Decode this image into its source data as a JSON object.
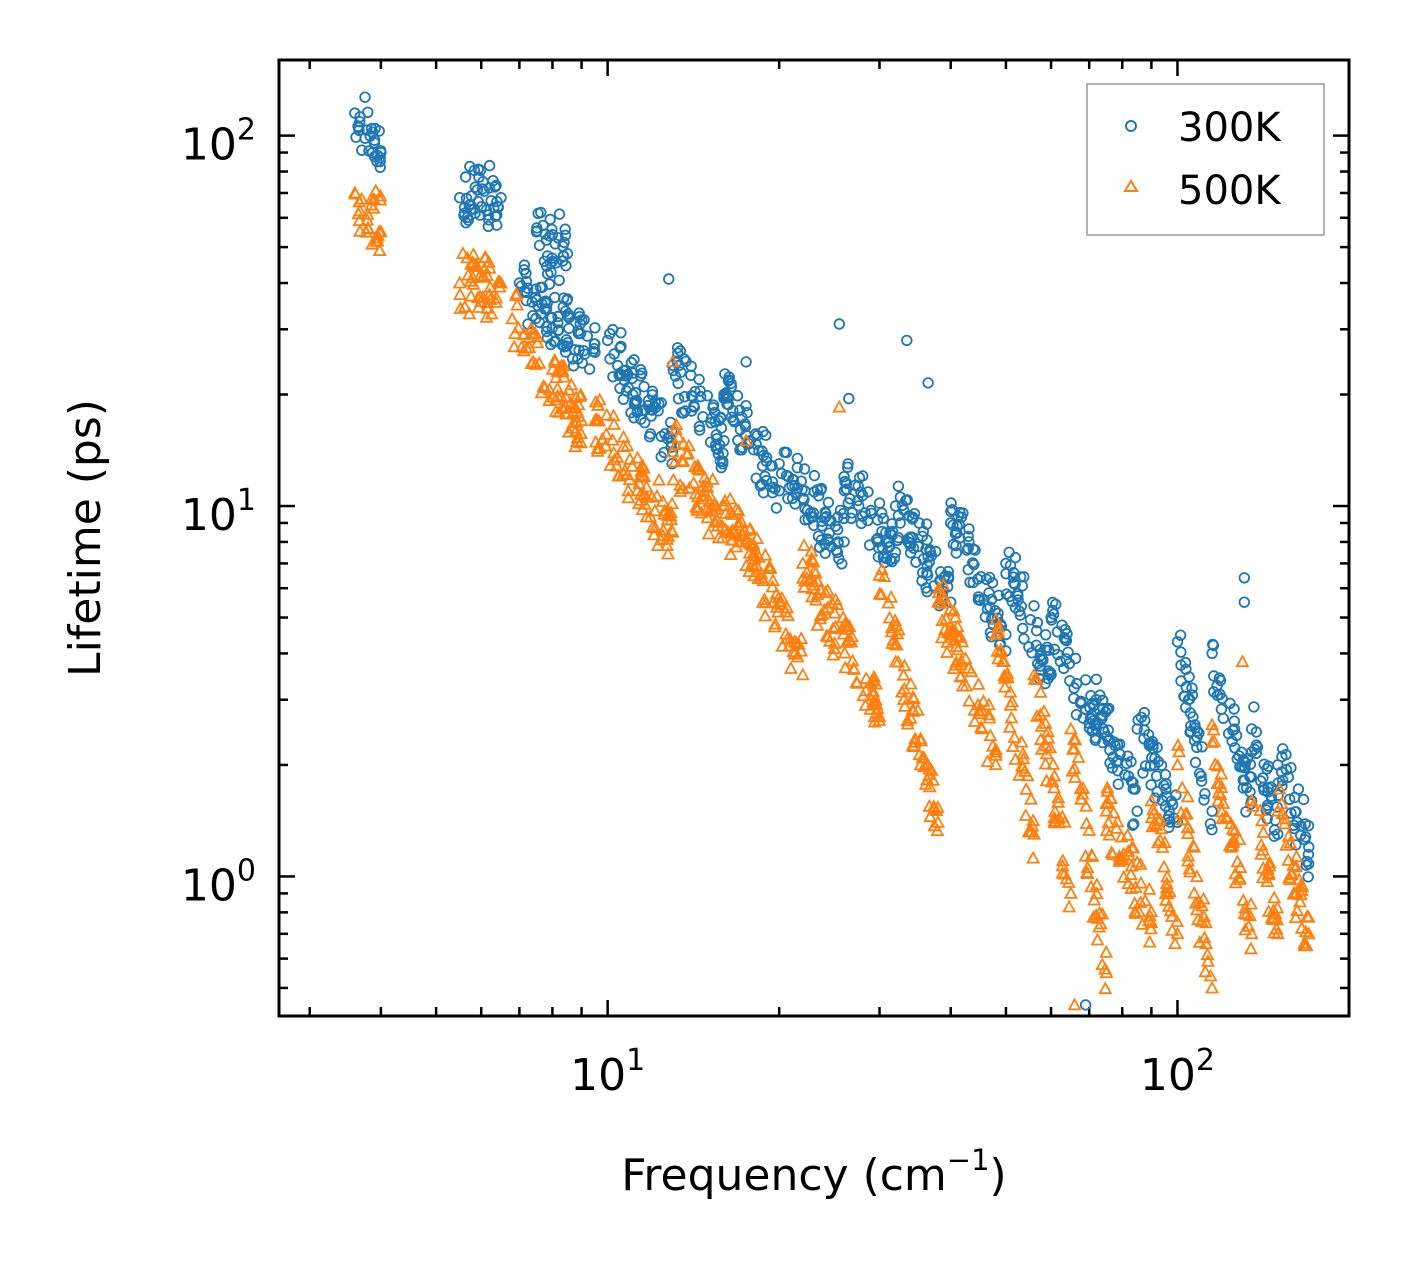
{
  "chart_data": {
    "type": "scatter",
    "title": "",
    "xlabel": "Frequency (cm",
    "xlabel_sup": "−1",
    "xlabel_close": ")",
    "ylabel": "Lifetime (ps)",
    "xscale": "log",
    "yscale": "log",
    "xlim": [
      2.65,
      200
    ],
    "ylim": [
      0.42,
      160
    ],
    "x_major_ticks": [
      {
        "value": 10,
        "base": "10",
        "exp": "1"
      },
      {
        "value": 100,
        "base": "10",
        "exp": "2"
      }
    ],
    "y_major_ticks": [
      {
        "value": 1,
        "base": "10",
        "exp": "0"
      },
      {
        "value": 10,
        "base": "10",
        "exp": "1"
      },
      {
        "value": 100,
        "base": "10",
        "exp": "2"
      }
    ],
    "legend_position": "top-right",
    "series": [
      {
        "name": "300K",
        "marker": "circle",
        "color": "#1f77b4",
        "bands": [
          {
            "x": [
              3.6,
              4.0
            ],
            "y": [
              115,
              90
            ]
          },
          {
            "x": [
              5.5,
              6.5
            ],
            "y": [
              68,
              68
            ]
          },
          {
            "x": [
              7.5,
              8.5
            ],
            "y": [
              55,
              48
            ]
          },
          {
            "x": [
              7.0,
              9.5
            ],
            "y": [
              40,
              26
            ]
          },
          {
            "x": [
              10,
              13
            ],
            "y": [
              28,
              14
            ]
          },
          {
            "x": [
              13,
              16
            ],
            "y": [
              24,
              15
            ]
          },
          {
            "x": [
              16,
              20
            ],
            "y": [
              20,
              11
            ]
          },
          {
            "x": [
              20,
              26
            ],
            "y": [
              13,
              8
            ]
          },
          {
            "x": [
              26,
              32
            ],
            "y": [
              12,
              7.5
            ]
          },
          {
            "x": [
              32,
              40
            ],
            "y": [
              10,
              5.5
            ]
          },
          {
            "x": [
              40,
              50
            ],
            "y": [
              9,
              4.5
            ]
          },
          {
            "x": [
              50,
              60
            ],
            "y": [
              7,
              3.5
            ]
          },
          {
            "x": [
              60,
              72
            ],
            "y": [
              5,
              2.5
            ]
          },
          {
            "x": [
              72,
              85
            ],
            "y": [
              3,
              1.5
            ]
          },
          {
            "x": [
              85,
              100
            ],
            "y": [
              2.5,
              1.4
            ]
          },
          {
            "x": [
              100,
              115
            ],
            "y": [
              4.3,
              1.5
            ]
          },
          {
            "x": [
              115,
              135
            ],
            "y": [
              4,
              1.6
            ]
          },
          {
            "x": [
              135,
              150
            ],
            "y": [
              2.5,
              1.3
            ]
          },
          {
            "x": [
              150,
              170
            ],
            "y": [
              2.0,
              1.2
            ]
          }
        ],
        "highlights": [
          {
            "x": 12.8,
            "y": 41
          },
          {
            "x": 25.5,
            "y": 31
          },
          {
            "x": 33.5,
            "y": 28
          },
          {
            "x": 36.5,
            "y": 21.5
          },
          {
            "x": 26.5,
            "y": 19.5
          },
          {
            "x": 17.5,
            "y": 24.5
          },
          {
            "x": 131,
            "y": 6.4
          },
          {
            "x": 131,
            "y": 5.5
          },
          {
            "x": 69,
            "y": 0.45
          },
          {
            "x": 68,
            "y": 0.42
          }
        ]
      },
      {
        "name": "500K",
        "marker": "triangle",
        "color": "#ff7f0e",
        "bands": [
          {
            "x": [
              3.6,
              4.0
            ],
            "y": [
              70,
              55
            ]
          },
          {
            "x": [
              5.5,
              6.5
            ],
            "y": [
              40,
              40
            ]
          },
          {
            "x": [
              6.8,
              9.0
            ],
            "y": [
              32,
              17
            ]
          },
          {
            "x": [
              9.5,
              13
            ],
            "y": [
              17,
              8.5
            ]
          },
          {
            "x": [
              13,
              17
            ],
            "y": [
              14,
              8
            ]
          },
          {
            "x": [
              17,
              22
            ],
            "y": [
              9,
              3.5
            ]
          },
          {
            "x": [
              22,
              30
            ],
            "y": [
              7,
              2.7
            ]
          },
          {
            "x": [
              30,
              38
            ],
            "y": [
              6.5,
              1.4
            ]
          },
          {
            "x": [
              38,
              48
            ],
            "y": [
              5.5,
              2.2
            ]
          },
          {
            "x": [
              48,
              56
            ],
            "y": [
              4.5,
              1.3
            ]
          },
          {
            "x": [
              56,
              65
            ],
            "y": [
              3.5,
              0.9
            ]
          },
          {
            "x": [
              65,
              75
            ],
            "y": [
              2.5,
              0.55
            ]
          },
          {
            "x": [
              75,
              90
            ],
            "y": [
              1.5,
              0.75
            ]
          },
          {
            "x": [
              90,
              100
            ],
            "y": [
              1.6,
              0.7
            ]
          },
          {
            "x": [
              100,
              115
            ],
            "y": [
              2.0,
              0.5
            ]
          },
          {
            "x": [
              115,
              135
            ],
            "y": [
              2.3,
              0.7
            ]
          },
          {
            "x": [
              135,
              150
            ],
            "y": [
              1.6,
              0.7
            ]
          },
          {
            "x": [
              150,
              170
            ],
            "y": [
              1.5,
              0.7
            ]
          }
        ],
        "highlights": [
          {
            "x": 25.5,
            "y": 18.5
          },
          {
            "x": 17.5,
            "y": 15
          },
          {
            "x": 13,
            "y": 24.5
          },
          {
            "x": 66,
            "y": 0.45
          },
          {
            "x": 130,
            "y": 3.8
          },
          {
            "x": 167,
            "y": 0.65
          }
        ]
      }
    ]
  }
}
